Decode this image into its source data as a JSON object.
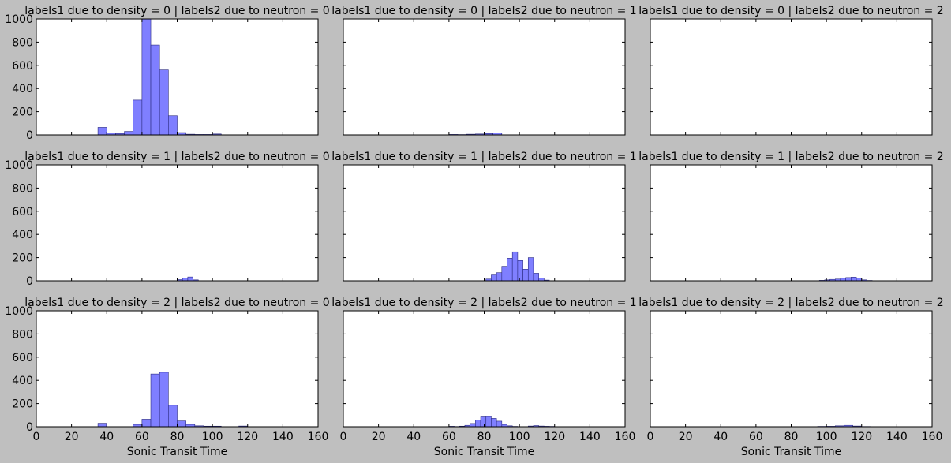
{
  "chart_data": {
    "type": "bar",
    "layout": "facet-grid 3x3",
    "row_variable": "labels1 due to density",
    "col_variable": "labels2 due to neutron",
    "xlabel": "Sonic Transit Time",
    "ylabel": "",
    "xlim": [
      0,
      160
    ],
    "ylim": [
      0,
      1000
    ],
    "xticks": [
      0,
      20,
      40,
      60,
      80,
      100,
      120,
      140,
      160
    ],
    "yticks": [
      0,
      200,
      400,
      600,
      800,
      1000
    ],
    "grid": false,
    "bar_color": "#7f7fff",
    "bar_edge_color": "#2b2b80",
    "background": "#bfbfbf",
    "panels": [
      {
        "title": "labels1 due to density = 0 | labels2 due to neutron = 0",
        "bins": [
          [
            35,
            40,
            65
          ],
          [
            40,
            45,
            15
          ],
          [
            45,
            50,
            12
          ],
          [
            50,
            55,
            30
          ],
          [
            55,
            60,
            300
          ],
          [
            60,
            65,
            1000
          ],
          [
            65,
            70,
            775
          ],
          [
            70,
            75,
            560
          ],
          [
            75,
            80,
            165
          ],
          [
            80,
            85,
            20
          ],
          [
            85,
            90,
            6
          ],
          [
            90,
            95,
            4
          ],
          [
            95,
            100,
            4
          ],
          [
            100,
            105,
            8
          ]
        ]
      },
      {
        "title": "labels1 due to density = 0 | labels2 due to neutron = 1",
        "bins": [
          [
            60,
            65,
            4
          ],
          [
            65,
            70,
            3
          ],
          [
            70,
            75,
            6
          ],
          [
            75,
            80,
            8
          ],
          [
            80,
            85,
            12
          ],
          [
            85,
            90,
            18
          ]
        ]
      },
      {
        "title": "labels1 due to density = 0 | labels2 due to neutron = 2",
        "bins": []
      },
      {
        "title": "labels1 due to density = 1 | labels2 due to neutron = 0",
        "bins": [
          [
            80,
            83,
            10
          ],
          [
            83,
            86,
            25
          ],
          [
            86,
            89,
            33
          ],
          [
            89,
            92,
            8
          ]
        ]
      },
      {
        "title": "labels1 due to density = 1 | labels2 due to neutron = 1",
        "bins": [
          [
            81,
            84,
            15
          ],
          [
            84,
            87,
            50
          ],
          [
            87,
            90,
            70
          ],
          [
            90,
            93,
            125
          ],
          [
            93,
            96,
            195
          ],
          [
            96,
            99,
            250
          ],
          [
            99,
            102,
            175
          ],
          [
            102,
            105,
            100
          ],
          [
            105,
            108,
            200
          ],
          [
            108,
            111,
            65
          ],
          [
            111,
            114,
            25
          ],
          [
            114,
            117,
            6
          ]
        ]
      },
      {
        "title": "labels1 due to density = 1 | labels2 due to neutron = 2",
        "bins": [
          [
            96,
            99,
            4
          ],
          [
            99,
            102,
            8
          ],
          [
            102,
            105,
            12
          ],
          [
            105,
            108,
            15
          ],
          [
            108,
            111,
            22
          ],
          [
            111,
            114,
            28
          ],
          [
            114,
            117,
            32
          ],
          [
            117,
            120,
            24
          ],
          [
            120,
            123,
            8
          ],
          [
            123,
            126,
            3
          ]
        ]
      },
      {
        "title": "labels1 due to density = 2 | labels2 due to neutron = 0",
        "bins": [
          [
            35,
            40,
            30
          ],
          [
            55,
            60,
            20
          ],
          [
            60,
            65,
            65
          ],
          [
            65,
            70,
            455
          ],
          [
            70,
            75,
            470
          ],
          [
            75,
            80,
            185
          ],
          [
            80,
            85,
            50
          ],
          [
            85,
            90,
            20
          ],
          [
            90,
            95,
            8
          ],
          [
            95,
            100,
            5
          ],
          [
            100,
            105,
            5
          ],
          [
            115,
            120,
            6
          ]
        ]
      },
      {
        "title": "labels1 due to density = 2 | labels2 due to neutron = 1",
        "bins": [
          [
            60,
            63,
            4
          ],
          [
            63,
            66,
            2
          ],
          [
            66,
            69,
            5
          ],
          [
            69,
            72,
            12
          ],
          [
            72,
            75,
            28
          ],
          [
            75,
            78,
            58
          ],
          [
            78,
            81,
            85
          ],
          [
            81,
            84,
            88
          ],
          [
            84,
            87,
            72
          ],
          [
            87,
            90,
            48
          ],
          [
            90,
            93,
            20
          ],
          [
            93,
            96,
            8
          ],
          [
            96,
            99,
            3
          ],
          [
            105,
            108,
            6
          ],
          [
            108,
            111,
            10
          ],
          [
            111,
            114,
            6
          ],
          [
            114,
            117,
            4
          ],
          [
            117,
            120,
            3
          ]
        ]
      },
      {
        "title": "labels1 due to density = 2 | labels2 due to neutron = 2",
        "bins": [
          [
            95,
            100,
            3
          ],
          [
            100,
            105,
            4
          ],
          [
            105,
            110,
            8
          ],
          [
            110,
            115,
            12
          ],
          [
            115,
            120,
            6
          ],
          [
            120,
            125,
            2
          ]
        ]
      }
    ]
  }
}
